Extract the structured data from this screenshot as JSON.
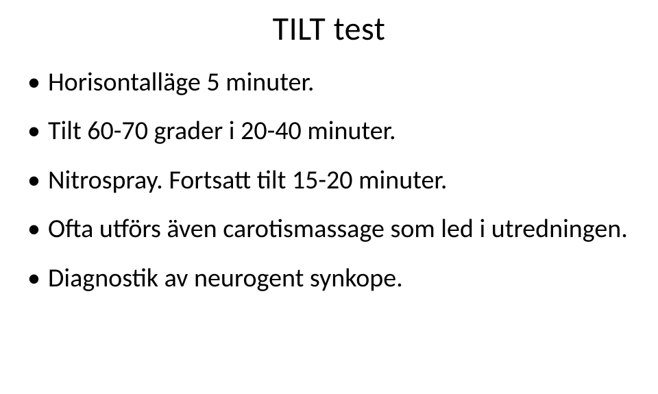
{
  "title": "TILT test",
  "bullets": [
    "Horisontalläge 5 minuter.",
    "Tilt 60-70 grader i 20-40 minuter.",
    "Nitrospray. Fortsatt tilt 15-20 minuter.",
    "Ofta utförs även carotismassage som led i utredningen.",
    "Diagnostik av neurogent synkope."
  ],
  "colors": {
    "background": "#ffffff",
    "text": "#000000"
  },
  "typography": {
    "title_fontsize": 48,
    "body_fontsize": 38,
    "font_family": "Calibri, Arial, sans-serif"
  }
}
